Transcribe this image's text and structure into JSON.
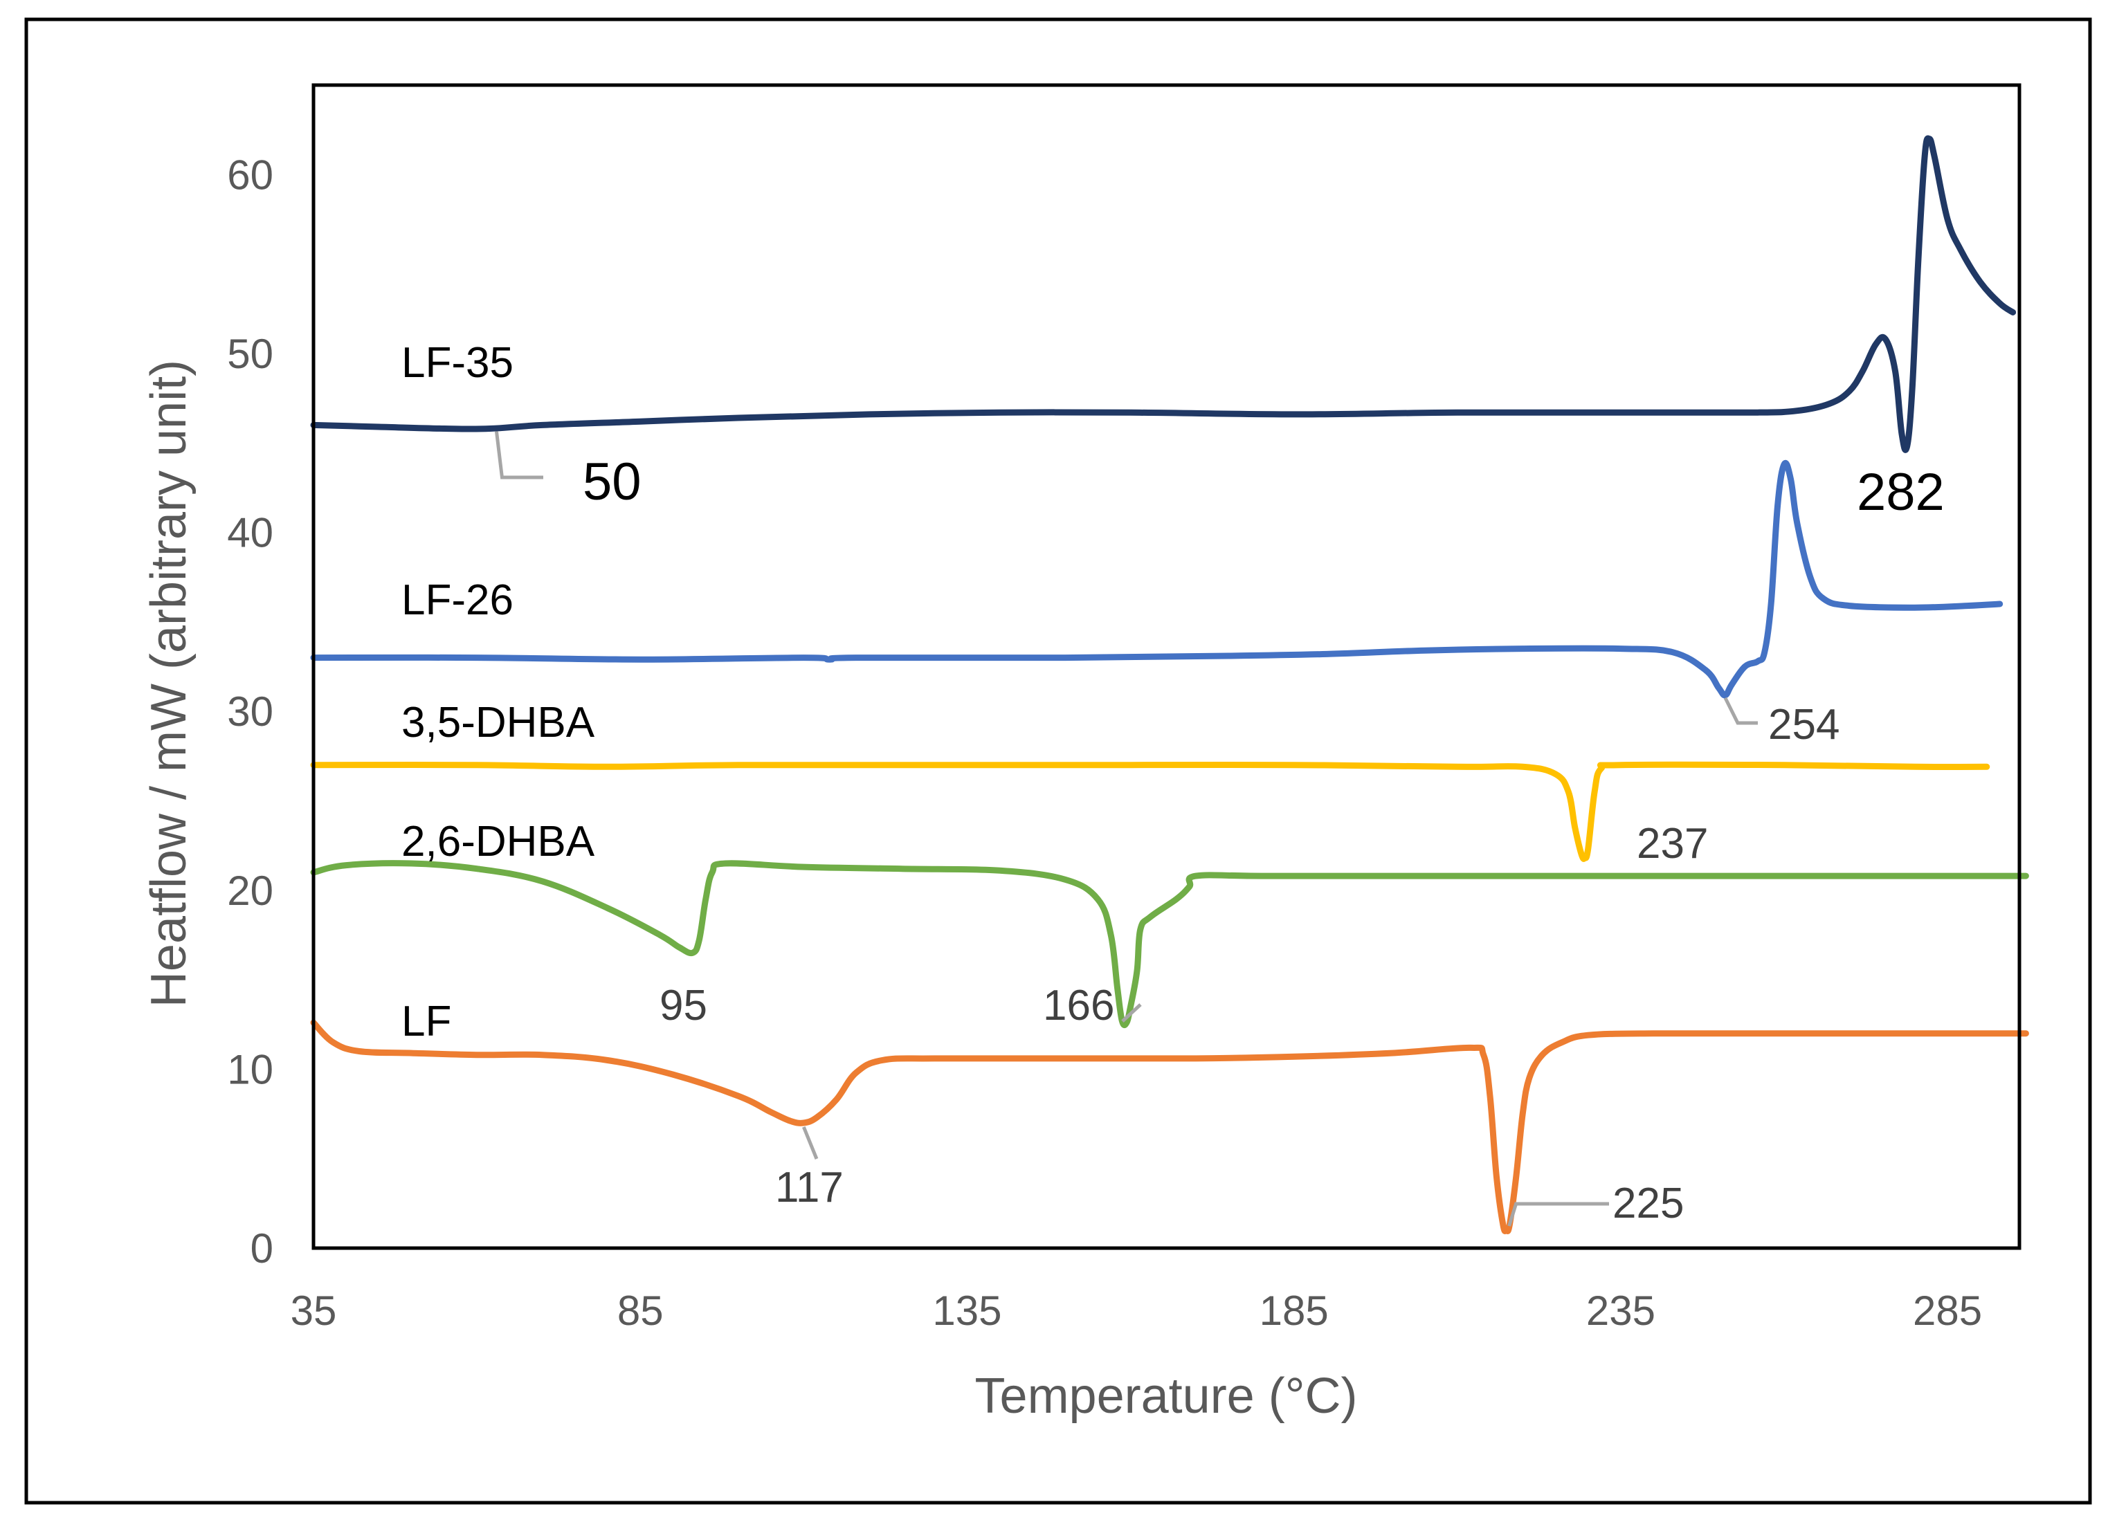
{
  "chart_data": {
    "type": "line",
    "title": "",
    "xlabel": "Temperature (°C)",
    "ylabel": "Heatflow / mW (arbitrary unit)",
    "xlim": [
      35,
      296
    ],
    "ylim": [
      0,
      65
    ],
    "xticks": [
      "35",
      "85",
      "135",
      "185",
      "235",
      "285"
    ],
    "yticks": [
      "0",
      "10",
      "20",
      "30",
      "40",
      "50",
      "60"
    ],
    "grid": false,
    "series": [
      {
        "name": "LF-35",
        "label": "LF-35",
        "color": "#203864",
        "points": [
          [
            35,
            46.0
          ],
          [
            45,
            45.9
          ],
          [
            55,
            45.8
          ],
          [
            62,
            45.8
          ],
          [
            70,
            46.0
          ],
          [
            85,
            46.2
          ],
          [
            100,
            46.4
          ],
          [
            120,
            46.6
          ],
          [
            140,
            46.7
          ],
          [
            160,
            46.7
          ],
          [
            185,
            46.6
          ],
          [
            210,
            46.7
          ],
          [
            235,
            46.7
          ],
          [
            255,
            46.7
          ],
          [
            262,
            46.8
          ],
          [
            267,
            47.2
          ],
          [
            270,
            47.9
          ],
          [
            272,
            49.0
          ],
          [
            274,
            50.5
          ],
          [
            275.5,
            50.8
          ],
          [
            277,
            49.0
          ],
          [
            278,
            45.5
          ],
          [
            278.8,
            44.8
          ],
          [
            279.6,
            48.0
          ],
          [
            280.5,
            55.0
          ],
          [
            281.5,
            61.0
          ],
          [
            282.2,
            62.0
          ],
          [
            283,
            61.0
          ],
          [
            285,
            57.5
          ],
          [
            287,
            55.8
          ],
          [
            290,
            54.0
          ],
          [
            293,
            52.8
          ],
          [
            295,
            52.3
          ]
        ]
      },
      {
        "name": "LF-26",
        "label": "LF-26",
        "color": "#4472C4",
        "points": [
          [
            35,
            33.0
          ],
          [
            60,
            33.0
          ],
          [
            85,
            32.9
          ],
          [
            110,
            33.0
          ],
          [
            114,
            32.9
          ],
          [
            118,
            33.0
          ],
          [
            150,
            33.0
          ],
          [
            175,
            33.1
          ],
          [
            190,
            33.2
          ],
          [
            205,
            33.4
          ],
          [
            220,
            33.5
          ],
          [
            235,
            33.5
          ],
          [
            243,
            33.3
          ],
          [
            248,
            32.3
          ],
          [
            250,
            31.3
          ],
          [
            251,
            30.9
          ],
          [
            252,
            31.5
          ],
          [
            254,
            32.5
          ],
          [
            256,
            32.8
          ],
          [
            257,
            33.3
          ],
          [
            258,
            36.0
          ],
          [
            259,
            41.5
          ],
          [
            260,
            43.8
          ],
          [
            261,
            43.0
          ],
          [
            262,
            40.5
          ],
          [
            264,
            37.5
          ],
          [
            266,
            36.3
          ],
          [
            270,
            35.9
          ],
          [
            280,
            35.8
          ],
          [
            288,
            35.9
          ],
          [
            293,
            36.0
          ]
        ]
      },
      {
        "name": "3,5-DHBA",
        "label": "3,5-DHBA",
        "color": "#FFC000",
        "points": [
          [
            35,
            27.0
          ],
          [
            60,
            27.0
          ],
          [
            80,
            26.9
          ],
          [
            100,
            27.0
          ],
          [
            130,
            27.0
          ],
          [
            160,
            27.0
          ],
          [
            185,
            27.0
          ],
          [
            210,
            26.9
          ],
          [
            220,
            26.9
          ],
          [
            225,
            26.5
          ],
          [
            227,
            25.5
          ],
          [
            228,
            23.5
          ],
          [
            229,
            22.0
          ],
          [
            229.5,
            21.8
          ],
          [
            230,
            22.3
          ],
          [
            231,
            25.5
          ],
          [
            232,
            26.8
          ],
          [
            235,
            27.0
          ],
          [
            260,
            27.0
          ],
          [
            280,
            26.9
          ],
          [
            291,
            26.9
          ]
        ]
      },
      {
        "name": "2,6-DHBA",
        "label": "2,6-DHBA",
        "color": "#70AD47",
        "points": [
          [
            35,
            21.0
          ],
          [
            40,
            21.4
          ],
          [
            50,
            21.5
          ],
          [
            60,
            21.2
          ],
          [
            70,
            20.5
          ],
          [
            80,
            19.0
          ],
          [
            88,
            17.5
          ],
          [
            91,
            16.8
          ],
          [
            93,
            16.5
          ],
          [
            94,
            17.2
          ],
          [
            95,
            19.5
          ],
          [
            96,
            21.0
          ],
          [
            98,
            21.5
          ],
          [
            110,
            21.3
          ],
          [
            125,
            21.2
          ],
          [
            140,
            21.1
          ],
          [
            150,
            20.6
          ],
          [
            155,
            19.5
          ],
          [
            157,
            17.5
          ],
          [
            158,
            14.5
          ],
          [
            158.7,
            12.7
          ],
          [
            159.4,
            12.6
          ],
          [
            160,
            13.5
          ],
          [
            161,
            15.5
          ],
          [
            161.5,
            17.8
          ],
          [
            163,
            18.5
          ],
          [
            167,
            19.5
          ],
          [
            169,
            20.2
          ],
          [
            170,
            20.8
          ],
          [
            180,
            20.8
          ],
          [
            200,
            20.8
          ],
          [
            230,
            20.8
          ],
          [
            260,
            20.8
          ],
          [
            297,
            20.8
          ]
        ]
      },
      {
        "name": "LF",
        "label": "LF",
        "color": "#ED7D31",
        "points": [
          [
            35,
            12.6
          ],
          [
            38,
            11.5
          ],
          [
            42,
            11.0
          ],
          [
            50,
            10.9
          ],
          [
            60,
            10.8
          ],
          [
            70,
            10.8
          ],
          [
            80,
            10.5
          ],
          [
            90,
            9.7
          ],
          [
            100,
            8.5
          ],
          [
            105,
            7.6
          ],
          [
            108,
            7.1
          ],
          [
            110,
            7.0
          ],
          [
            112,
            7.3
          ],
          [
            115,
            8.3
          ],
          [
            118,
            9.8
          ],
          [
            122,
            10.5
          ],
          [
            130,
            10.6
          ],
          [
            150,
            10.6
          ],
          [
            170,
            10.6
          ],
          [
            185,
            10.7
          ],
          [
            200,
            10.9
          ],
          [
            212,
            11.2
          ],
          [
            214,
            10.8
          ],
          [
            215,
            8.5
          ],
          [
            216,
            4.0
          ],
          [
            217,
            1.3
          ],
          [
            217.5,
            1.0
          ],
          [
            218,
            1.3
          ],
          [
            219,
            4.0
          ],
          [
            220,
            7.5
          ],
          [
            221,
            9.5
          ],
          [
            223,
            10.8
          ],
          [
            226,
            11.5
          ],
          [
            230,
            11.9
          ],
          [
            240,
            12.0
          ],
          [
            260,
            12.0
          ],
          [
            280,
            12.0
          ],
          [
            297,
            12.0
          ]
        ]
      }
    ],
    "annotations": [
      {
        "text": "50",
        "x": 63,
        "y": 45.8,
        "series": "LF-35"
      },
      {
        "text": "282",
        "x": 278.8,
        "y": 44.8,
        "series": "LF-35"
      },
      {
        "text": "254",
        "x": 251,
        "y": 30.9,
        "series": "LF-26"
      },
      {
        "text": "237",
        "x": 229.5,
        "y": 21.8,
        "series": "3,5-DHBA"
      },
      {
        "text": "95",
        "x": 93,
        "y": 16.5,
        "series": "2,6-DHBA"
      },
      {
        "text": "166",
        "x": 159.4,
        "y": 12.6,
        "series": "2,6-DHBA"
      },
      {
        "text": "117",
        "x": 110,
        "y": 7.0,
        "series": "LF"
      },
      {
        "text": "225",
        "x": 217.5,
        "y": 1.0,
        "series": "LF"
      }
    ]
  }
}
